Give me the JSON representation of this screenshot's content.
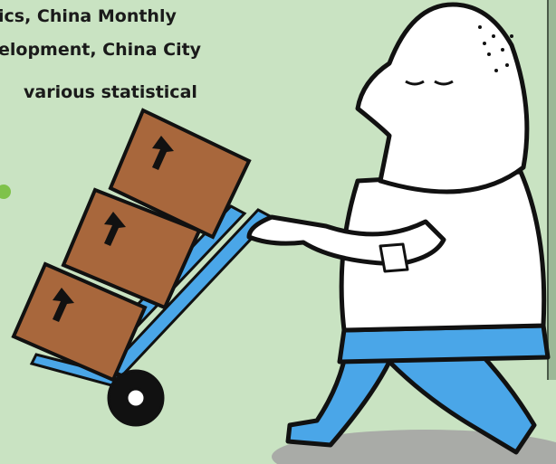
{
  "text": {
    "lines": [
      "ics, China Monthly",
      "elopment, China City",
      "various statistical"
    ]
  }
}
